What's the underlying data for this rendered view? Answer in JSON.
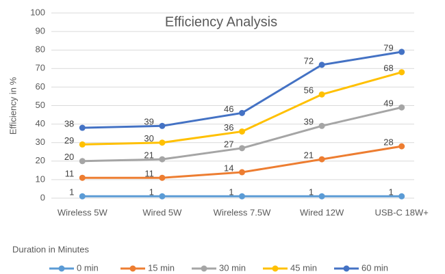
{
  "chart_data": {
    "type": "line",
    "title": "Efficiency Analysis",
    "y_label": "Efficiency in %",
    "legend_title": "Duration in Minutes",
    "categories": [
      "Wireless 5W",
      "Wired 5W",
      "Wireless 7.5W",
      "Wired 12W",
      "USB-C 18W+"
    ],
    "series": [
      {
        "name": "0 min",
        "color": "#5B9BD5",
        "values": [
          1,
          1,
          1,
          1,
          1
        ]
      },
      {
        "name": "15 min",
        "color": "#ED7D31",
        "values": [
          11,
          11,
          14,
          21,
          28
        ]
      },
      {
        "name": "30 min",
        "color": "#A5A5A5",
        "values": [
          20,
          21,
          27,
          39,
          49
        ]
      },
      {
        "name": "45 min",
        "color": "#FFC000",
        "values": [
          29,
          30,
          36,
          56,
          68
        ]
      },
      {
        "name": "60 min",
        "color": "#4472C4",
        "values": [
          38,
          39,
          46,
          72,
          79
        ]
      }
    ],
    "ylim": [
      0,
      100
    ],
    "yticks": [
      0,
      10,
      20,
      30,
      40,
      50,
      60,
      70,
      80,
      90,
      100
    ],
    "grid": true,
    "legend": "bottom"
  }
}
